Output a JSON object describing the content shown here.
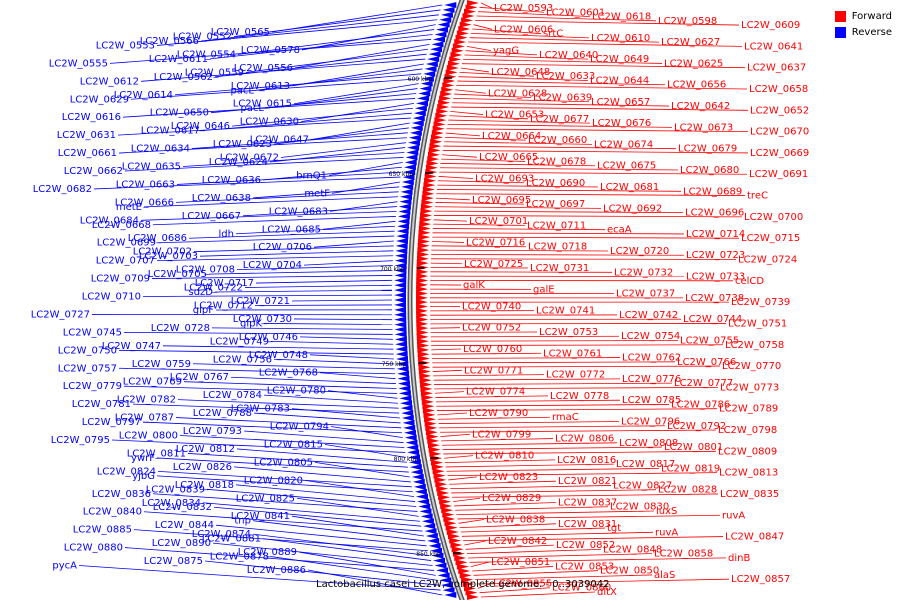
{
  "colors": {
    "forward": "#ff0000",
    "reverse": "#0000ff",
    "backbone": "#999999",
    "tick": "#000000"
  },
  "legend": [
    {
      "label": "Forward",
      "color": "#ff0000"
    },
    {
      "label": "Reverse",
      "color": "#0000ff"
    }
  ],
  "caption": "Lactobacillus casei LC2W, complete genome. - 0..3039042",
  "scale_labels": [
    "600 kbp",
    "650 kbp",
    "700 kbp",
    "750 kbp",
    "800 kbp",
    "850 kbp"
  ],
  "reverse_genes": [
    "LC2W_0565",
    "LC2W_0552",
    "LC2W_0566",
    "LC2W_0553",
    "LC2W_0578",
    "LC2W_0554",
    "LC2W_0611",
    "LC2W_0555",
    "LC2W_0556",
    "LC2W_0559",
    "LC2W_0562",
    "LC2W_0612",
    "LC2W_0613",
    "pacL",
    "LC2W_0614",
    "LC2W_0629",
    "LC2W_0615",
    "pacL",
    "LC2W_0650",
    "LC2W_0616",
    "LC2W_0630",
    "LC2W_0646",
    "LC2W_0617",
    "LC2W_0631",
    "LC2W_0647",
    "LC2W_0623",
    "LC2W_0634",
    "LC2W_0661",
    "LC2W_0672",
    "LC2W_0624",
    "LC2W_0635",
    "LC2W_0662",
    "brnQ1",
    "LC2W_0636",
    "LC2W_0663",
    "LC2W_0682",
    "metF",
    "LC2W_0638",
    "LC2W_0666",
    "metE",
    "LC2W_0683",
    "LC2W_0667",
    "LC2W_0684",
    "LC2W_0668",
    "LC2W_0685",
    "ldh",
    "LC2W_0686",
    "LC2W_0699",
    "LC2W_0706",
    "LC2W_0702",
    "LC2W_0703",
    "LC2W_0707",
    "LC2W_0704",
    "LC2W_0708",
    "LC2W_0705",
    "LC2W_0709",
    "LC2W_0717",
    "LC2W_0722",
    "sdzD",
    "LC2W_0710",
    "LC2W_0721",
    "LC2W_0712",
    "glpF",
    "LC2W_0727",
    "LC2W_0730",
    "glpK",
    "LC2W_0728",
    "LC2W_0745",
    "LC2W_0746",
    "LC2W_0749",
    "LC2W_0747",
    "LC2W_0750",
    "LC2W_0748",
    "LC2W_0756",
    "LC2W_0759",
    "LC2W_0757",
    "LC2W_0768",
    "LC2W_0767",
    "LC2W_0769",
    "LC2W_0779",
    "LC2W_0780",
    "LC2W_0784",
    "LC2W_0782",
    "LC2W_0781",
    "LC2W_0783",
    "LC2W_0788",
    "LC2W_0787",
    "LC2W_0797",
    "LC2W_0794",
    "LC2W_0793",
    "LC2W_0800",
    "LC2W_0795",
    "LC2W_0815",
    "LC2W_0812",
    "LC2W_0811",
    "ywrF",
    "LC2W_0805",
    "LC2W_0826",
    "LC2W_0824",
    "yjbG",
    "LC2W_0820",
    "LC2W_0818",
    "LC2W_0839",
    "LC2W_0836",
    "LC2W_0825",
    "LC2W_0834",
    "LC2W_0832",
    "LC2W_0840",
    "LC2W_0841",
    "tnp",
    "LC2W_0844",
    "LC2W_0885",
    "LC2W_0874",
    "LC2W_0881",
    "LC2W_0890",
    "LC2W_0880",
    "LC2W_0889",
    "LC2W_0878",
    "LC2W_0875",
    "pycA",
    "LC2W_0886"
  ],
  "forward_genes": [
    "LC2W_0593",
    "LC2W_0601",
    "LC2W_0618",
    "LC2W_0598",
    "LC2W_0609",
    "LC2W_0606",
    "srtC",
    "LC2W_0610",
    "LC2W_0627",
    "LC2W_0641",
    "yagG",
    "LC2W_0640",
    "LC2W_0649",
    "LC2W_0625",
    "LC2W_0637",
    "LC2W_0648",
    "LC2W_0633",
    "LC2W_0644",
    "LC2W_0656",
    "LC2W_0658",
    "LC2W_0628",
    "LC2W_0639",
    "LC2W_0657",
    "LC2W_0642",
    "LC2W_0652",
    "LC2W_0653",
    "LC2W_0677",
    "LC2W_0676",
    "LC2W_0673",
    "LC2W_0670",
    "LC2W_0664",
    "LC2W_0660",
    "LC2W_0674",
    "LC2W_0679",
    "LC2W_0669",
    "LC2W_0665",
    "LC2W_0678",
    "LC2W_0675",
    "LC2W_0680",
    "LC2W_0691",
    "LC2W_0693",
    "LC2W_0690",
    "LC2W_0681",
    "LC2W_0689",
    "treC",
    "LC2W_0695",
    "LC2W_0697",
    "LC2W_0692",
    "LC2W_0696",
    "LC2W_0700",
    "LC2W_0701",
    "LC2W_0711",
    "ecaA",
    "LC2W_0714",
    "LC2W_0715",
    "LC2W_0716",
    "LC2W_0718",
    "LC2W_0720",
    "LC2W_0723",
    "LC2W_0724",
    "LC2W_0725",
    "LC2W_0731",
    "LC2W_0732",
    "LC2W_0733",
    "celCD",
    "galK",
    "galE",
    "LC2W_0737",
    "LC2W_0738",
    "LC2W_0739",
    "LC2W_0740",
    "LC2W_0741",
    "LC2W_0742",
    "LC2W_0744",
    "LC2W_0751",
    "LC2W_0752",
    "LC2W_0753",
    "LC2W_0754",
    "LC2W_0755",
    "LC2W_0758",
    "LC2W_0760",
    "LC2W_0761",
    "LC2W_0762",
    "LC2W_0766",
    "LC2W_0770",
    "LC2W_0771",
    "LC2W_0772",
    "LC2W_0776",
    "LC2W_0777",
    "LC2W_0773",
    "LC2W_0774",
    "LC2W_0778",
    "LC2W_0785",
    "LC2W_0786",
    "LC2W_0789",
    "LC2W_0790",
    "rmaC",
    "LC2W_0796",
    "LC2W_0792",
    "LC2W_0798",
    "LC2W_0799",
    "LC2W_0806",
    "LC2W_0808",
    "LC2W_0801",
    "LC2W_0809",
    "LC2W_0810",
    "LC2W_0816",
    "LC2W_0817",
    "LC2W_0819",
    "LC2W_0813",
    "LC2W_0823",
    "LC2W_0821",
    "LC2W_0827",
    "LC2W_0828",
    "LC2W_0835",
    "LC2W_0829",
    "LC2W_0837",
    "LC2W_0830",
    "luxS",
    "ruvA",
    "LC2W_0838",
    "LC2W_0831",
    "tgt",
    "ruvA",
    "LC2W_0847",
    "LC2W_0842",
    "LC2W_0852",
    "LC2W_0848",
    "LC2W_0858",
    "dinB",
    "LC2W_0851",
    "LC2W_0853",
    "LC2W_0850",
    "alaS",
    "LC2W_0857",
    "LC2W_0855",
    "LC2W_0860",
    "dltX"
  ]
}
